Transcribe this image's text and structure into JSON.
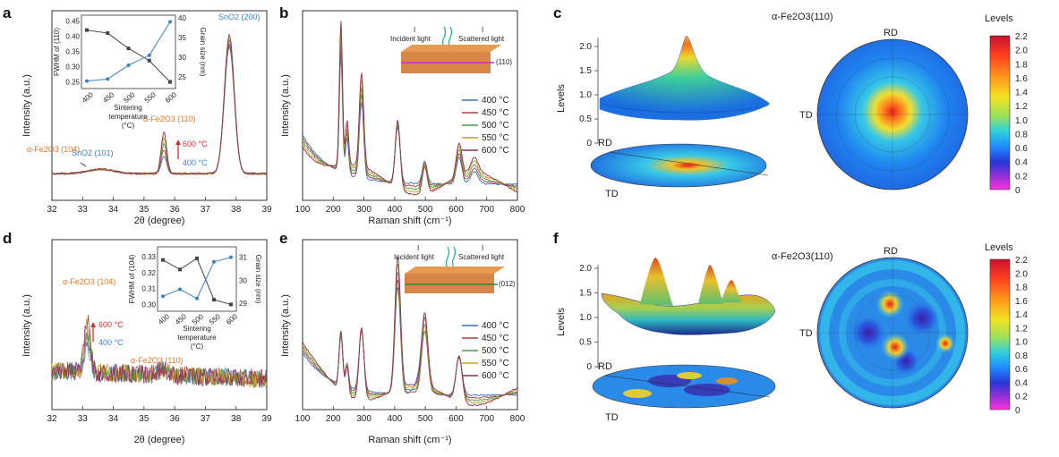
{
  "panels": {
    "a": "a",
    "b": "b",
    "c": "c",
    "d": "d",
    "e": "e",
    "f": "f"
  },
  "xrd_top": {
    "ylabel": "Intensity (a.u.)",
    "xlabel": "2θ (degree)",
    "xticks": [
      "32",
      "33",
      "34",
      "35",
      "36",
      "37",
      "38",
      "39"
    ],
    "ann_sno2_200": "SnO2 (200)",
    "ann_fe_110": "α-Fe2O3 (110)",
    "ann_fe_104": "α-Fe2O3 (104)",
    "ann_sno2_101": "SnO2 (101)",
    "ann_600": "600 °C",
    "ann_400": "400 °C",
    "inset": {
      "ylabel": "FWHM of (110)",
      "y2label": "Grain size (nm)",
      "xlabel1": "Sintering",
      "xlabel2": "temperature",
      "xlabel3": "(°C)",
      "xticks": [
        "400",
        "450",
        "500",
        "550",
        "600"
      ],
      "yticks": [
        "0.25",
        "0.30",
        "0.35",
        "0.40",
        "0.45"
      ],
      "y2ticks": [
        "25",
        "30",
        "35",
        "40"
      ]
    }
  },
  "raman_top": {
    "ylabel": "Intensity (a.u.)",
    "xlabel": "Raman shift (cm⁻¹)",
    "xticks": [
      "100",
      "200",
      "300",
      "400",
      "500",
      "600",
      "700",
      "800"
    ],
    "incident": "Incident light",
    "scattered": "Scattered light",
    "i1": "I",
    "i2": "I",
    "plane": "(110)",
    "legend": [
      "400 °C",
      "450 °C",
      "500 °C",
      "550 °C",
      "600 °C"
    ]
  },
  "xrd_bottom": {
    "ylabel": "Intensity (a.u.)",
    "xlabel": "2θ (degree)",
    "xticks": [
      "32",
      "33",
      "34",
      "35",
      "36",
      "37",
      "38",
      "39"
    ],
    "ann_fe_104": "α-Fe2O3 (104)",
    "ann_fe_110": "α-Fe2O3 (110)",
    "ann_600": "600 °C",
    "ann_400": "400 °C",
    "inset": {
      "ylabel": "FWHM of (104)",
      "y2label": "Grain size (nm)",
      "xlabel1": "Sintering",
      "xlabel2": "temperature",
      "xlabel3": "(°C)",
      "xticks": [
        "400",
        "450",
        "500",
        "550",
        "600"
      ],
      "yticks": [
        "0.30",
        "0.31",
        "0.32",
        "0.33"
      ],
      "y2ticks": [
        "29",
        "30",
        "31"
      ]
    }
  },
  "raman_bottom": {
    "ylabel": "Intensity (a.u.)",
    "xlabel": "Raman shift (cm⁻¹)",
    "xticks": [
      "100",
      "200",
      "300",
      "400",
      "500",
      "600",
      "700",
      "800"
    ],
    "incident": "Incident light",
    "scattered": "Scattered light",
    "i1": "I",
    "i2": "I",
    "plane": "(012)",
    "legend": [
      "400 °C",
      "450 °C",
      "500 °C",
      "550 °C",
      "600 °C"
    ]
  },
  "pole_top": {
    "title": "α-Fe2O3(110)",
    "zlabel": "Levels",
    "zticks": [
      "0",
      "0.5",
      "1.0",
      "1.5",
      "2.0"
    ],
    "rd": "RD",
    "td": "TD",
    "rd2": "RD",
    "td2": "TD",
    "colorbar_title": "Levels",
    "colorbar_ticks": [
      "2.2",
      "2.0",
      "1.8",
      "1.6",
      "1.4",
      "1.2",
      "1.0",
      "0.8",
      "0.6",
      "0.4",
      "0.2",
      "0"
    ]
  },
  "pole_bottom": {
    "title": "α-Fe2O3(110)",
    "zlabel": "Levels",
    "zticks": [
      "0",
      "0.5",
      "1.0",
      "1.5",
      "2.0"
    ],
    "rd": "RD",
    "td": "TD",
    "rd2": "RD",
    "td2": "TD",
    "colorbar_title": "Levels",
    "colorbar_ticks": [
      "2.2",
      "2.0",
      "1.8",
      "1.6",
      "1.4",
      "1.2",
      "1.0",
      "0.8",
      "0.6",
      "0.4",
      "0.2",
      "0"
    ]
  },
  "colors": {
    "c400": "#3a6fbf",
    "c450": "#b0413e",
    "c500": "#4a9a4a",
    "c550": "#c9a227",
    "c600": "#8b2c55",
    "orange": "#e07a2a",
    "blue": "#3b82c4",
    "red": "#d32f2f"
  },
  "chart_data": [
    {
      "type": "line",
      "panel": "a",
      "xlabel": "2θ (degree)",
      "ylabel": "Intensity (a.u.)",
      "xlim": [
        32,
        39
      ],
      "series": [
        {
          "x": [
            32,
            32.5,
            33,
            33.3,
            33.6,
            34,
            34.5,
            35,
            35.4,
            35.6,
            35.8,
            36.2,
            36.6,
            37,
            37.3,
            37.6,
            37.8,
            38,
            38.3,
            38.6,
            39
          ],
          "y": [
            0.08,
            0.08,
            0.09,
            0.1,
            0.12,
            0.1,
            0.08,
            0.08,
            0.11,
            0.3,
            0.12,
            0.09,
            0.09,
            0.1,
            0.16,
            0.65,
            0.92,
            0.45,
            0.15,
            0.1,
            0.09
          ]
        }
      ],
      "inset": {
        "x": [
          400,
          450,
          500,
          550,
          600
        ],
        "fwhm": [
          0.42,
          0.41,
          0.36,
          0.32,
          0.25
        ],
        "grain_size": [
          24,
          24.5,
          28,
          30.5,
          39
        ]
      }
    },
    {
      "type": "line",
      "panel": "b",
      "xlabel": "Raman shift (cm⁻¹)",
      "ylabel": "Intensity (a.u.)",
      "xlim": [
        100,
        800
      ],
      "peaks_cm": [
        225,
        245,
        292,
        410,
        498,
        610,
        660
      ]
    },
    {
      "type": "line",
      "panel": "d",
      "xlabel": "2θ (degree)",
      "ylabel": "Intensity (a.u.)",
      "xlim": [
        32,
        39
      ],
      "inset": {
        "x": [
          400,
          450,
          500,
          550,
          600
        ],
        "fwhm": [
          0.328,
          0.322,
          0.329,
          0.303,
          0.3
        ],
        "grain_size": [
          29.3,
          29.6,
          29.2,
          30.8,
          31.0
        ]
      }
    },
    {
      "type": "line",
      "panel": "e",
      "xlabel": "Raman shift (cm⁻¹)",
      "ylabel": "Intensity (a.u.)",
      "xlim": [
        100,
        800
      ],
      "peaks_cm": [
        225,
        245,
        292,
        410,
        498,
        610
      ]
    }
  ]
}
